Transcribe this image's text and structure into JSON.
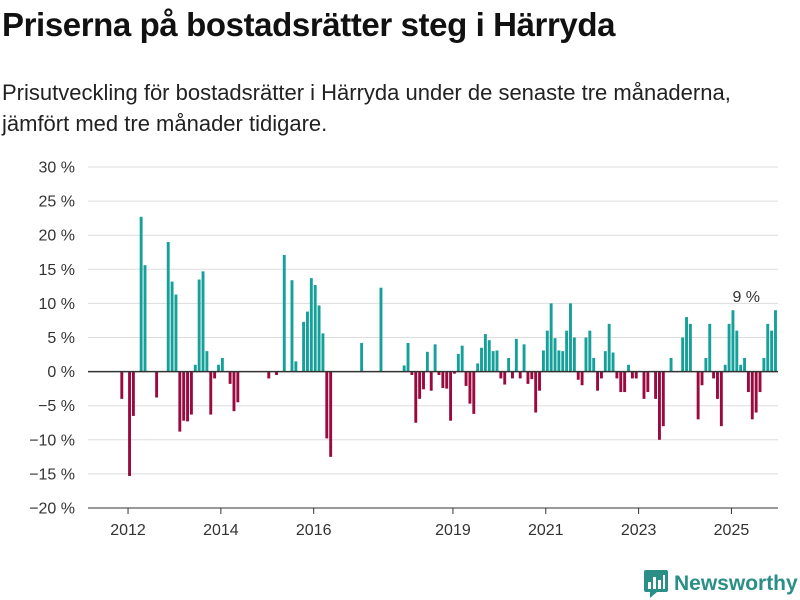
{
  "title": "Priserna på bostadsrätter steg i Härryda",
  "subtitle": "Prisutveckling för bostadsrätter i Härryda under de senaste tre månaderna, jämfört med tre månader tidigare.",
  "brand": {
    "name": "Newsworthy",
    "color": "#2a8f86"
  },
  "colors": {
    "positive": "#15a19a",
    "negative": "#9b0a3f",
    "zero_line": "#333333",
    "grid": "#dddddd"
  },
  "chart_data": {
    "type": "bar",
    "title": "Priserna på bostadsrätter steg i Härryda",
    "xlabel": "",
    "ylabel": "",
    "y_unit": "%",
    "ylim": [
      -20,
      30
    ],
    "y_ticks": [
      30,
      25,
      20,
      15,
      10,
      5,
      0,
      -5,
      -10,
      -15,
      -20
    ],
    "y_tick_labels": [
      "30 %",
      "25 %",
      "20 %",
      "15 %",
      "10 %",
      "5 %",
      "0 %",
      "−5 %",
      "−10 %",
      "−15 %",
      "−20 %"
    ],
    "x_ticks": [
      "2012",
      "2014",
      "2016",
      "2019",
      "2021",
      "2023",
      "2025"
    ],
    "x_start": "2011-11",
    "annotation": {
      "text": "9 %",
      "x": "2025-08",
      "y": 9
    },
    "grid": true,
    "values": [
      -4,
      null,
      -15.3,
      -6.5,
      null,
      22.7,
      15.6,
      null,
      null,
      -3.8,
      null,
      null,
      19,
      13.2,
      11.3,
      -8.8,
      -7.2,
      -7.3,
      -6.3,
      1,
      13.5,
      14.7,
      3,
      -6.3,
      -1,
      1,
      2,
      null,
      -1.8,
      -5.8,
      -4.5,
      null,
      null,
      null,
      null,
      null,
      null,
      null,
      -1,
      null,
      -0.5,
      null,
      17.1,
      null,
      13.4,
      1.5,
      null,
      7.3,
      8.8,
      13.7,
      12.7,
      9.7,
      5.6,
      -9.8,
      -12.5,
      null,
      null,
      null,
      null,
      null,
      null,
      null,
      4.2,
      null,
      null,
      null,
      null,
      12.3,
      null,
      null,
      null,
      null,
      null,
      0.9,
      4.2,
      -0.5,
      -7.5,
      -4,
      -2.6,
      2.9,
      -2.8,
      4,
      -0.5,
      -2.4,
      -2.5,
      -7.2,
      -0.3,
      2.6,
      3.8,
      -2.1,
      -4.7,
      -6.2,
      1.2,
      3.5,
      5.5,
      4.6,
      3,
      3.1,
      -1,
      -1.9,
      2,
      -1,
      4.8,
      -1,
      4,
      -1.8,
      -1.1,
      -6,
      -2.8,
      3.1,
      6,
      10,
      4.9,
      3.1,
      3,
      6,
      10,
      5,
      -1.2,
      -2,
      5,
      6,
      2,
      -2.8,
      -1,
      3,
      7,
      2.8,
      -1,
      -3,
      -3,
      1,
      -1,
      -1,
      null,
      -4,
      -3,
      null,
      -4,
      -10,
      -8,
      null,
      2,
      null,
      null,
      5,
      8,
      7,
      null,
      -7,
      -2,
      2,
      7,
      -1,
      -4,
      -8,
      1,
      7,
      9,
      6,
      1,
      2,
      -3,
      -7,
      -6,
      -3,
      2,
      7,
      6,
      9
    ]
  }
}
